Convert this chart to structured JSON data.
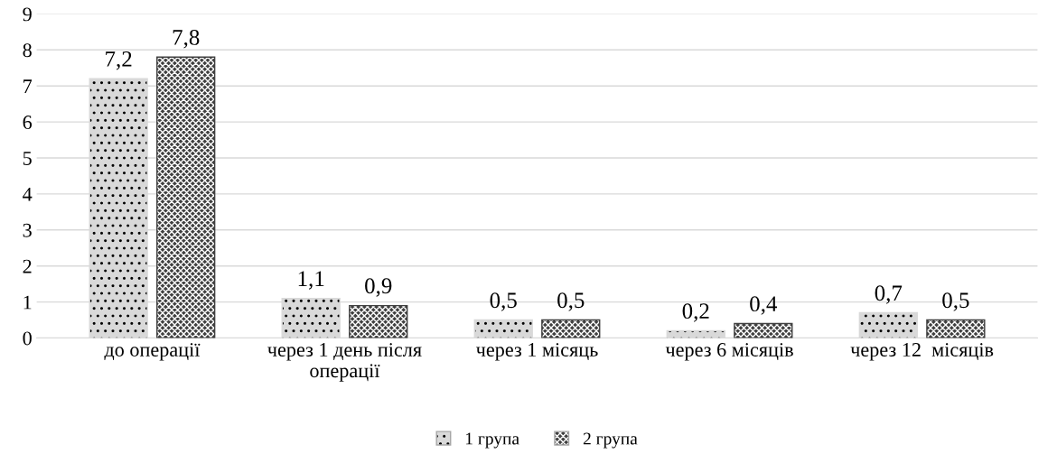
{
  "chart_data": {
    "type": "bar",
    "categories": [
      "до операції",
      "через 1 день після\nоперації",
      "через 1 місяць",
      "через 6 місяців",
      "через 12  місяців"
    ],
    "series": [
      {
        "name": "1 група",
        "color": "#d9d9d9",
        "values": [
          7.2,
          1.1,
          0.5,
          0.2,
          0.7
        ],
        "value_labels": [
          "7,2",
          "1,1",
          "0,5",
          "0,2",
          "0,7"
        ]
      },
      {
        "name": "2 група",
        "color": "#404040",
        "values": [
          7.8,
          0.9,
          0.5,
          0.4,
          0.5
        ],
        "value_labels": [
          "7,8",
          "0,9",
          "0,5",
          "0,4",
          "0,5"
        ]
      }
    ],
    "ylim": [
      0,
      9
    ],
    "yticks": [
      0,
      1,
      2,
      3,
      4,
      5,
      6,
      7,
      8,
      9
    ],
    "grid": "y",
    "legend": "bottom"
  }
}
